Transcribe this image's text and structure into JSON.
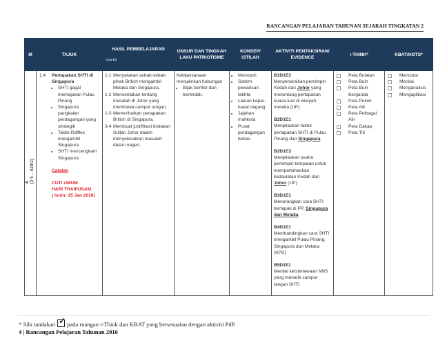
{
  "header": {
    "title": "RANCANGAN PELAJARAN TAHUNAN SEJARAH TINGKATAN 2"
  },
  "table": {
    "columns": [
      "M",
      "TAJUK",
      "HASIL  PEMBELAJARAN",
      "UNSUR DAN TINGKAH LAKU PATRIOTISME",
      "KONSEP/ ISTILAH",
      "AKTIVITI PENTAKSIRAN/ EVIDENCE",
      "i-THINK*",
      "KBAT/HOTS*"
    ],
    "hasil_sub": "Aras-Bil",
    "row": {
      "week": "4",
      "week_dates": "(2 5 – 629/2)",
      "topic_no": "1.4",
      "topic_title": "Pertapakan SHTI di Singapura",
      "topic_points": [
        "SHTI gagal memajukan Pulau Pinang",
        "Singapura pangkalan perdagangan yang strategik",
        "Taktik Raffles mengambil Singapura",
        "SHTI mencengkam Singapura"
      ],
      "note_label": "Catatan",
      "note_lines": [
        "CUTI UMUM",
        "HARI THAIPUSAM",
        "( Isnin: 25 Jan 2016)"
      ],
      "outcomes": [
        {
          "n": "1-1",
          "t": "Menyatakan sebab-sebab pihak British mengambil Melaka dan Singapura."
        },
        {
          "n": "1-2",
          "t": "Menceritakan tentang masalah di Johor yang membawa campur tangan."
        },
        {
          "n": "1-3",
          "t": "Memerihalkan penapakan British di Singapura."
        },
        {
          "n": "3-4",
          "t": "Membuat justifikasi tindakan Sultan Johor dalam menyelesaikan masalah dalam negeri."
        }
      ],
      "values_intro": "Kebijaksanaan menjalinkan hubungan",
      "values_points": [
        "Bijak berfikir dan bertindak."
      ],
      "concepts": [
        "Monopoli",
        "Sistem pewarisan takhta",
        "Laluan kapal-kapal dagang",
        "Jajahan mahkota",
        "Pusat perdagangan bebas"
      ],
      "activities": [
        {
          "code": "B1D1E3",
          "a": "Menyenaraikan pemimpin Kedah dan ",
          "u": "Johor",
          "b": " yang menentang pertapakan kuasa luar di wilayah mereka (UP)"
        },
        {
          "code": "B2D1E1",
          "a": "Menjelaskan faktor pertapakan SHTI di Pulau Pinang dan ",
          "u": "Singapura",
          "b": ""
        },
        {
          "code": "B2D1E3",
          "a": "Menjelaskan usaha pemimpin tempatan untuk mempertahankan kedaulatan Kedah dan ",
          "u": "Johor",
          "b": " (UP)"
        },
        {
          "code": "B3D1E1",
          "a": "Menerangkan cara SHTI bertapak di PP, ",
          "u": "Singapura dan Melaka",
          "b": ""
        },
        {
          "code": "B4D1E1",
          "a": "Membandingkan cara SHTI mengambil Pulau Pinang, Singapura dan Melaka (KPS)",
          "u": "",
          "b": ""
        },
        {
          "code": "B5D1E1",
          "a": "Menilai keistimewaan NNS yang menarik campur tangan SHTI",
          "u": "",
          "b": ""
        }
      ],
      "ithink": [
        "Peta Bulatan",
        "Peta Buih",
        "Peta Buih Berganda",
        "Peta Pokok",
        "Peta Alir",
        "Peta Pelbagai Alir",
        "Peta Dakap",
        "Peta Titi"
      ],
      "kbat": [
        "Mencipta",
        "Menilai",
        "Menganalisis",
        "Mengaplikasi"
      ]
    }
  },
  "footer": {
    "note_before": "* Sila tandakan",
    "note_after": "pada ruangan i-Think dan KBAT yang bersesuaian dengan aktiviti PdP.",
    "page": "4 | Rancangan Pelajaran Tahunan 2016"
  },
  "colors": {
    "header_bg": "#1f3b5c",
    "note_red": "#e0202a"
  }
}
